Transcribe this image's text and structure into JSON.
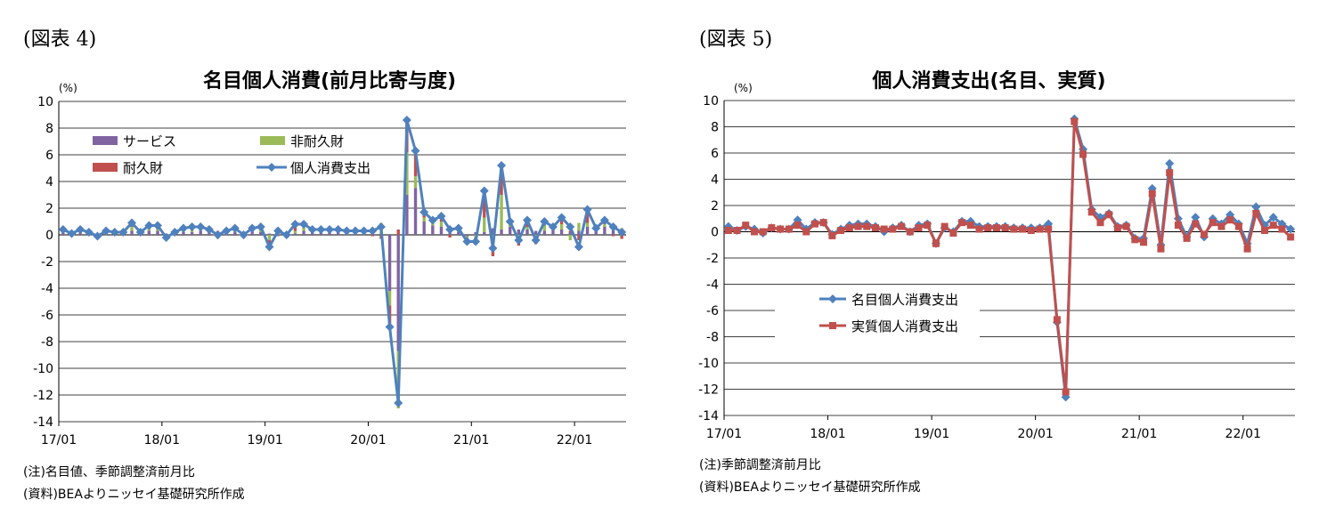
{
  "figures": [
    {
      "label": "(図表 4)",
      "title": "名目個人消費(前月比寄与度)",
      "unit": "(%)",
      "notes": [
        "(注)名目値、季節調整済前月比",
        "(資料)BEAよりニッセイ基礎研究所作成"
      ]
    },
    {
      "label": "(図表 5)",
      "title": "個人消費支出(名目、実質)",
      "unit": "(%)",
      "notes": [
        "(注)季節調整済前月比",
        "(資料)BEAよりニッセイ基礎研究所作成"
      ]
    }
  ],
  "chart_data": [
    {
      "type": "bar",
      "title": "名目個人消費(前月比寄与度)",
      "ylabel": "(%)",
      "ylim": [
        -14,
        10
      ],
      "yticks": [
        10,
        8,
        6,
        4,
        2,
        0,
        -2,
        -4,
        -6,
        -8,
        -10,
        -12,
        -14
      ],
      "x_tick_labels": [
        "17/01",
        "18/01",
        "19/01",
        "20/01",
        "21/01",
        "22/01"
      ],
      "x_tick_index": [
        0,
        12,
        24,
        36,
        48,
        60
      ],
      "n_months": 66,
      "grid": "horizontal",
      "legend_position": "top-left inside",
      "series": [
        {
          "name": "サービス",
          "kind": "stacked-bar",
          "color": "#8064a2",
          "values": [
            0.2,
            0.1,
            0.2,
            0.1,
            0.0,
            0.2,
            0.1,
            0.2,
            0.3,
            0.2,
            0.3,
            0.3,
            0.1,
            0.1,
            0.2,
            0.2,
            0.3,
            0.2,
            0.2,
            0.2,
            0.2,
            0.1,
            0.3,
            0.2,
            0.1,
            -0.1,
            0.2,
            0.1,
            0.3,
            0.2,
            0.2,
            0.2,
            0.2,
            0.2,
            0.2,
            0.1,
            0.2,
            0.1,
            -4.2,
            -8.7,
            3.0,
            3.5,
            1.0,
            0.7,
            0.6,
            0.5,
            0.2,
            -0.1,
            0.2,
            0.2,
            0.5,
            0.4,
            0.6,
            0.4,
            0.4,
            0.3,
            0.3,
            0.5,
            0.4,
            0.2,
            0.3,
            0.6,
            0.3,
            0.6,
            0.4,
            0.4
          ]
        },
        {
          "name": "非耐久財",
          "kind": "stacked-bar",
          "color": "#9bbb59",
          "values": [
            0.1,
            0.0,
            0.1,
            0.1,
            0.0,
            0.1,
            0.0,
            0.0,
            0.3,
            0.0,
            0.2,
            0.3,
            -0.3,
            0.1,
            0.2,
            0.3,
            0.1,
            0.1,
            -0.3,
            0.1,
            0.1,
            0.0,
            0.2,
            0.3,
            -0.4,
            0.2,
            0.0,
            0.2,
            0.3,
            0.2,
            0.1,
            0.1,
            0.1,
            0.1,
            0.1,
            0.1,
            0.2,
            0.8,
            -1.1,
            -4.3,
            3.2,
            0.9,
            0.3,
            0.2,
            0.4,
            0.1,
            0.1,
            -0.2,
            -0.2,
            1.1,
            -0.4,
            2.6,
            0.3,
            -0.3,
            0.2,
            -0.3,
            0.5,
            0.1,
            0.4,
            -0.4,
            0.6,
            0.3,
            0.2,
            0.2,
            0.3,
            0.1
          ]
        },
        {
          "name": "耐久財",
          "kind": "stacked-bar",
          "color": "#c0504d",
          "values": [
            0.1,
            0.0,
            0.1,
            0.0,
            -0.1,
            0.0,
            0.1,
            0.0,
            0.3,
            0.0,
            0.2,
            0.1,
            0.0,
            0.0,
            0.1,
            0.1,
            0.2,
            0.1,
            0.1,
            0.0,
            0.2,
            -0.1,
            0.0,
            0.1,
            -0.6,
            0.2,
            -0.2,
            0.5,
            0.2,
            0.0,
            0.1,
            0.1,
            0.1,
            0.0,
            0.0,
            0.1,
            -0.1,
            -0.3,
            -1.6,
            0.4,
            2.4,
            1.9,
            0.4,
            0.2,
            0.4,
            -0.2,
            0.2,
            -0.2,
            -0.5,
            2.0,
            -1.2,
            2.3,
            0.1,
            -0.5,
            0.6,
            -0.4,
            0.2,
            0.1,
            0.6,
            0.1,
            -0.4,
            1.0,
            0.0,
            0.5,
            -0.1,
            -0.3
          ]
        },
        {
          "name": "個人消費支出",
          "kind": "line",
          "color": "#4f81bd",
          "values": [
            0.4,
            0.1,
            0.4,
            0.2,
            -0.1,
            0.3,
            0.2,
            0.2,
            0.9,
            0.2,
            0.7,
            0.7,
            -0.2,
            0.2,
            0.5,
            0.6,
            0.6,
            0.4,
            0.0,
            0.3,
            0.5,
            0.0,
            0.5,
            0.6,
            -0.9,
            0.3,
            0.0,
            0.8,
            0.8,
            0.4,
            0.4,
            0.4,
            0.4,
            0.3,
            0.3,
            0.3,
            0.3,
            0.6,
            -6.9,
            -12.6,
            8.6,
            6.3,
            1.7,
            1.1,
            1.4,
            0.4,
            0.5,
            -0.5,
            -0.5,
            3.3,
            -1.0,
            5.2,
            1.0,
            -0.4,
            1.1,
            -0.4,
            1.0,
            0.6,
            1.3,
            0.6,
            -0.9,
            1.9,
            0.5,
            1.1,
            0.6,
            0.2
          ]
        }
      ]
    },
    {
      "type": "line",
      "title": "個人消費支出(名目、実質)",
      "ylabel": "(%)",
      "ylim": [
        -14,
        10
      ],
      "yticks": [
        10,
        8,
        6,
        4,
        2,
        0,
        -2,
        -4,
        -6,
        -8,
        -10,
        -12,
        -14
      ],
      "x_tick_labels": [
        "17/01",
        "18/01",
        "19/01",
        "20/01",
        "21/01",
        "22/01"
      ],
      "x_tick_index": [
        0,
        12,
        24,
        36,
        48,
        60
      ],
      "n_months": 66,
      "grid": "horizontal",
      "legend_position": "center-left inside",
      "series": [
        {
          "name": "名目個人消費支出",
          "marker": "diamond",
          "color": "#4f81bd",
          "values": [
            0.4,
            0.1,
            0.4,
            0.2,
            -0.1,
            0.3,
            0.2,
            0.2,
            0.9,
            0.2,
            0.7,
            0.7,
            -0.2,
            0.2,
            0.5,
            0.6,
            0.6,
            0.4,
            0.0,
            0.3,
            0.5,
            0.0,
            0.5,
            0.6,
            -0.9,
            0.3,
            0.0,
            0.8,
            0.8,
            0.4,
            0.4,
            0.4,
            0.4,
            0.3,
            0.3,
            0.3,
            0.3,
            0.6,
            -6.9,
            -12.6,
            8.6,
            6.3,
            1.7,
            1.1,
            1.4,
            0.4,
            0.5,
            -0.5,
            -0.5,
            3.3,
            -1.0,
            5.2,
            1.0,
            -0.4,
            1.1,
            -0.4,
            1.0,
            0.6,
            1.3,
            0.6,
            -0.9,
            1.9,
            0.5,
            1.1,
            0.6,
            0.2
          ]
        },
        {
          "name": "実質個人消費支出",
          "marker": "square",
          "color": "#c0504d",
          "values": [
            0.1,
            0.1,
            0.5,
            0.0,
            0.0,
            0.3,
            0.2,
            0.2,
            0.5,
            0.0,
            0.6,
            0.7,
            -0.3,
            0.1,
            0.3,
            0.4,
            0.4,
            0.3,
            0.2,
            0.2,
            0.4,
            0.0,
            0.3,
            0.5,
            -0.9,
            0.4,
            -0.1,
            0.7,
            0.5,
            0.2,
            0.3,
            0.3,
            0.3,
            0.2,
            0.2,
            0.1,
            0.2,
            0.2,
            -6.7,
            -12.2,
            8.4,
            5.9,
            1.5,
            0.7,
            1.3,
            0.3,
            0.4,
            -0.6,
            -0.8,
            2.9,
            -1.3,
            4.5,
            0.5,
            -0.5,
            0.6,
            -0.2,
            0.7,
            0.4,
            0.9,
            0.4,
            -1.3,
            1.4,
            0.1,
            0.5,
            0.2,
            -0.4
          ]
        }
      ]
    }
  ]
}
